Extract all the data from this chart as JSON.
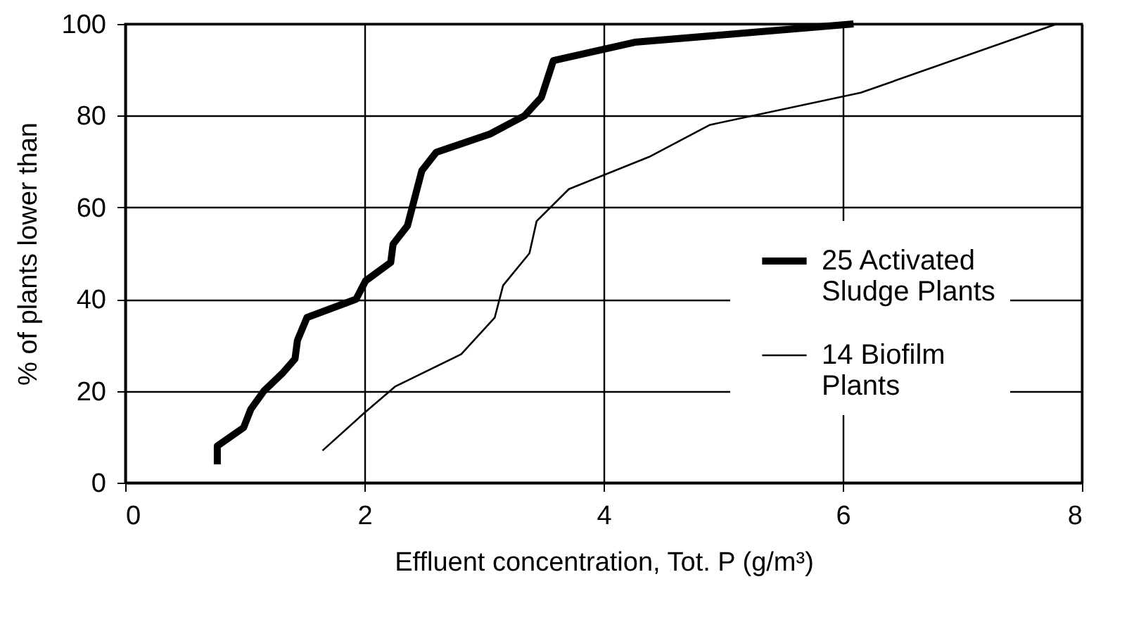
{
  "chart_data": {
    "type": "line",
    "xlabel": "Effluent concentration, Tot. P (g/m³)",
    "ylabel": "% of plants lower than",
    "xlim": [
      0,
      8
    ],
    "xticks": [
      0,
      2,
      4,
      6,
      8
    ],
    "ylim": [
      0,
      100
    ],
    "yticks": [
      0,
      20,
      40,
      60,
      80,
      100
    ],
    "grid": true,
    "legend": "right",
    "marker": "none",
    "line_style": "solid",
    "series": [
      {
        "name": "25 Activated Sludge Plants",
        "color": "#000000",
        "x": [
          0.77,
          0.77,
          0.99,
          1.05,
          1.16,
          1.32,
          1.42,
          1.44,
          1.52,
          1.93,
          2.01,
          2.22,
          2.24,
          2.36,
          2.4,
          2.48,
          2.6,
          3.05,
          3.34,
          3.48,
          3.58,
          4.26,
          6.09
        ],
        "values": [
          4,
          8,
          12,
          16,
          20,
          24,
          27,
          31,
          36,
          40,
          44,
          48,
          52,
          56,
          60,
          68,
          72,
          76,
          80,
          84,
          92,
          96,
          100
        ]
      },
      {
        "name": "14 Biofilm Plants",
        "color": "#000000",
        "x": [
          1.65,
          1.99,
          2.26,
          2.81,
          3.09,
          3.16,
          3.38,
          3.44,
          3.71,
          4.38,
          4.89,
          6.15,
          7.79
        ],
        "values": [
          7,
          15,
          21,
          28,
          36,
          43,
          50,
          57,
          64,
          71,
          78,
          85,
          100
        ]
      }
    ]
  }
}
